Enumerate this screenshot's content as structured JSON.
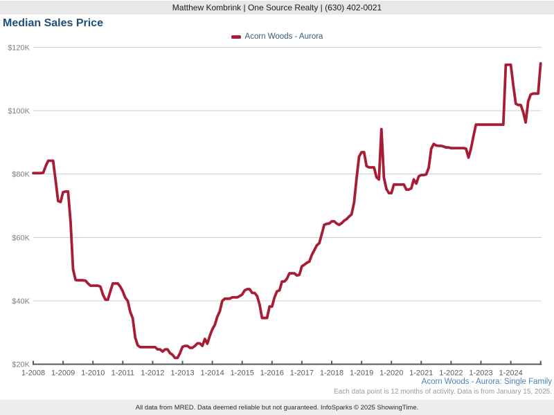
{
  "header": {
    "contact": "Matthew Kombrink | One Source Realty | (630) 402-0021"
  },
  "title": "Median Sales Price",
  "legend": {
    "label": "Acorn Woods - Aurora",
    "swatch_color": "#a81d35"
  },
  "footnotes": {
    "series": "Acorn Woods - Aurora: Single Family",
    "data": "Each data point is 12 months of activity. Data is from January 15, 2025."
  },
  "footer": {
    "disclaimer": "All data from MRED. Data deemed reliable but not guaranteed. InfoSparks © 2025 ShowingTime."
  },
  "chart_data": {
    "type": "line",
    "title": "Median Sales Price",
    "x_tick_labels": [
      "1-2008",
      "1-2009",
      "1-2010",
      "1-2011",
      "1-2012",
      "1-2013",
      "1-2014",
      "1-2015",
      "1-2016",
      "1-2017",
      "1-2018",
      "1-2019",
      "1-2020",
      "1-2021",
      "1-2022",
      "1-2023",
      "1-2024"
    ],
    "x_axis_years_span": 17,
    "y_tick_values": [
      20,
      40,
      60,
      80,
      100,
      120
    ],
    "y_tick_labels": [
      "$20K",
      "$40K",
      "$60K",
      "$80K",
      "$100K",
      "$120K"
    ],
    "y_range_thousands": [
      20,
      120
    ],
    "grid": "horizontal",
    "legend_position": "top-center",
    "colors": {
      "line": "#a81d35",
      "grid": "#cccccc",
      "axis": "#58595b",
      "y_label": "#808080",
      "x_label": "#58595b"
    },
    "series": [
      {
        "name": "Acorn Woods - Aurora",
        "color": "#a81d35",
        "cadence": "monthly",
        "from": "2008-01",
        "to": "2025-01",
        "values_thousands": [
          80.3,
          80.3,
          80.3,
          80.3,
          80.4,
          82.5,
          84.2,
          84.2,
          84.2,
          78.0,
          71.5,
          71.2,
          74.3,
          74.5,
          74.5,
          65.0,
          50.0,
          46.6,
          46.5,
          46.5,
          46.5,
          46.4,
          45.5,
          44.8,
          44.8,
          44.8,
          44.8,
          44.5,
          42.0,
          40.4,
          40.4,
          43.0,
          45.5,
          45.5,
          45.5,
          44.5,
          43.0,
          41.0,
          40.0,
          36.5,
          34.5,
          28.4,
          26.0,
          25.4,
          25.4,
          25.4,
          25.4,
          25.4,
          25.4,
          25.4,
          24.7,
          24.7,
          24.0,
          24.7,
          24.7,
          23.5,
          23.0,
          22.0,
          22.0,
          23.5,
          25.5,
          25.8,
          25.8,
          25.2,
          25.2,
          25.8,
          26.6,
          26.6,
          25.8,
          28.0,
          26.5,
          29.0,
          31.0,
          32.4,
          35.0,
          36.7,
          40.0,
          40.7,
          40.7,
          40.7,
          41.1,
          41.1,
          41.1,
          41.5,
          42.0,
          43.3,
          43.7,
          43.7,
          42.5,
          42.5,
          41.5,
          38.9,
          34.6,
          34.6,
          34.6,
          38.2,
          38.2,
          41.1,
          43.0,
          43.3,
          46.1,
          46.1,
          47.0,
          48.7,
          48.7,
          48.7,
          48.0,
          48.2,
          50.9,
          51.4,
          52.0,
          52.4,
          54.5,
          56.0,
          57.5,
          58.2,
          61.0,
          64.0,
          64.3,
          64.4,
          65.1,
          65.1,
          64.4,
          64.0,
          64.5,
          65.3,
          65.8,
          66.6,
          67.3,
          71.0,
          78.6,
          85.5,
          86.9,
          86.9,
          82.5,
          82.1,
          82.1,
          82.1,
          79.0,
          78.3,
          94.2,
          78.9,
          75.3,
          74.0,
          74.0,
          76.7,
          76.7,
          76.7,
          76.7,
          76.7,
          75.1,
          75.1,
          75.5,
          78.3,
          77.0,
          79.3,
          79.7,
          79.7,
          79.9,
          82.0,
          88.0,
          89.5,
          89.0,
          88.9,
          88.9,
          88.7,
          88.4,
          88.4,
          88.2,
          88.2,
          88.2,
          88.2,
          88.2,
          88.2,
          88.0,
          85.2,
          88.0,
          92.0,
          95.6,
          95.6,
          95.6,
          95.6,
          95.6,
          95.6,
          95.6,
          95.6,
          95.6,
          95.6,
          95.6,
          95.6,
          114.5,
          114.5,
          114.5,
          108.0,
          102.2,
          101.8,
          101.8,
          99.5,
          96.3,
          102.9,
          105.1,
          105.4,
          105.4,
          105.4,
          114.9
        ]
      }
    ]
  }
}
